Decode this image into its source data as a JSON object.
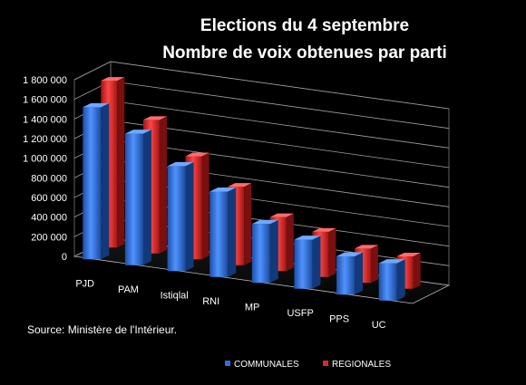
{
  "chart_data": {
    "type": "bar",
    "title": [
      "Elections du 4 septembre",
      "Nombre de voix obtenues par parti"
    ],
    "categories": [
      "PJD",
      "PAM",
      "Istiqlal",
      "RNI",
      "MP",
      "USFP",
      "PPS",
      "UC"
    ],
    "series": [
      {
        "name": "COMMUNALES",
        "color": "#2f6fd6",
        "values": [
          1550000,
          1340000,
          1070000,
          870000,
          600000,
          500000,
          390000,
          380000
        ]
      },
      {
        "name": "REGIONALES",
        "color": "#d62b2b",
        "values": [
          1700000,
          1360000,
          1050000,
          800000,
          550000,
          460000,
          350000,
          330000
        ]
      }
    ],
    "ylim": [
      0,
      1800000
    ],
    "yticks": [
      "1 800 000",
      "1 600 000",
      "1 400 000",
      "1 200 000",
      "1 000 000",
      "800 000",
      "600 000",
      "400 000",
      "200 000",
      "0"
    ],
    "grid": true,
    "legend_position": "bottom",
    "source": "Source: Ministère de l'Intérieur."
  }
}
